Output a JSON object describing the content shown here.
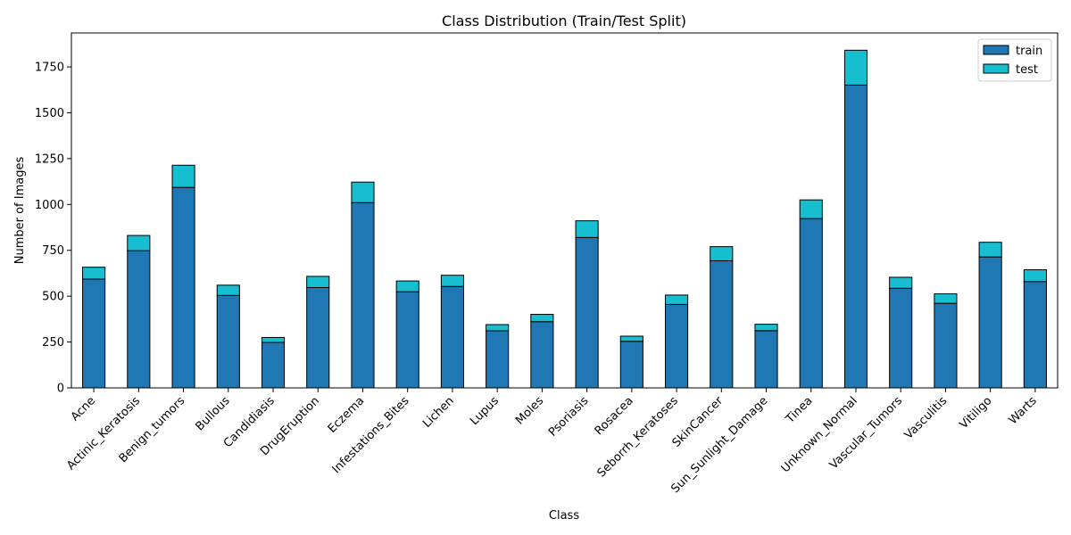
{
  "chart_data": {
    "type": "bar",
    "stacked": true,
    "title": "Class Distribution (Train/Test Split)",
    "xlabel": "Class",
    "ylabel": "Number of Images",
    "ylim": [
      0,
      1935
    ],
    "yticks": [
      0,
      250,
      500,
      750,
      1000,
      1250,
      1500,
      1750
    ],
    "grid": false,
    "legend_position": "top-right",
    "categories": [
      "Acne",
      "Actinic_Keratosis",
      "Benign_tumors",
      "Bullous",
      "Candidiasis",
      "DrugEruption",
      "Eczema",
      "Infestations_Bites",
      "Lichen",
      "Lupus",
      "Moles",
      "Psoriasis",
      "Rosacea",
      "Seborrh_Keratoses",
      "SkinCancer",
      "Sun_Sunlight_Damage",
      "Tinea",
      "Unknown_Normal",
      "Vascular_Tumors",
      "Vasculitis",
      "Vitiligo",
      "Warts"
    ],
    "series": [
      {
        "name": "train",
        "color": "#1f77b4",
        "values": [
          593,
          748,
          1093,
          504,
          248,
          547,
          1010,
          524,
          553,
          311,
          361,
          820,
          254,
          455,
          693,
          312,
          923,
          1651,
          543,
          461,
          714,
          580
        ]
      },
      {
        "name": "test",
        "color": "#17becf",
        "values": [
          65,
          83,
          121,
          56,
          27,
          61,
          112,
          59,
          61,
          34,
          40,
          91,
          28,
          51,
          77,
          35,
          102,
          190,
          60,
          52,
          80,
          64
        ]
      }
    ]
  }
}
